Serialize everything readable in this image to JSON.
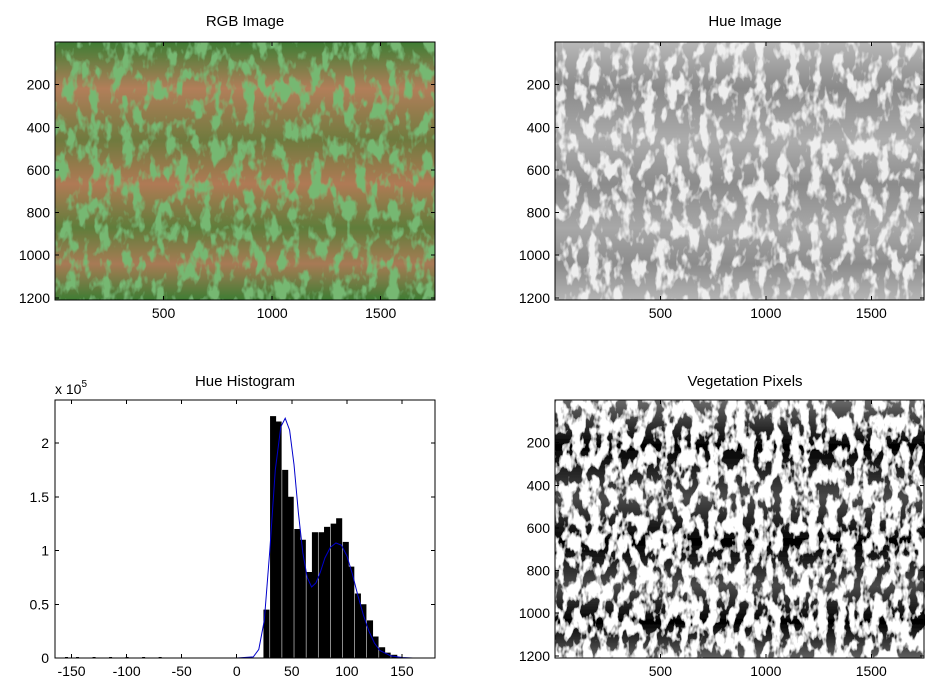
{
  "figure": {
    "panels": [
      {
        "id": "rgb",
        "title": "RGB Image"
      },
      {
        "id": "hue",
        "title": "Hue Image"
      },
      {
        "id": "hist",
        "title": "Hue Histogram"
      },
      {
        "id": "veg",
        "title": "Vegetation Pixels"
      }
    ]
  },
  "colors": {
    "soil": "#b07a55",
    "vegetation": "#2f7a2c",
    "hue_background": "#8c8c8c",
    "hue_plants": "#d8d8d8",
    "histogram_bars": "#000000",
    "fit_curve": "#0000cc"
  },
  "chart_data": [
    {
      "type": "image",
      "title": "RGB Image",
      "xticks": [
        500,
        1000,
        1500
      ],
      "yticks": [
        200,
        400,
        600,
        800,
        1000,
        1200
      ],
      "xlim": [
        0,
        1750
      ],
      "ylim": [
        0,
        1210
      ]
    },
    {
      "type": "image",
      "title": "Hue Image",
      "xticks": [
        500,
        1000,
        1500
      ],
      "yticks": [
        200,
        400,
        600,
        800,
        1000,
        1200
      ],
      "xlim": [
        0,
        1750
      ],
      "ylim": [
        0,
        1210
      ]
    },
    {
      "type": "bar",
      "title": "Hue Histogram",
      "y_multiplier": "x 10",
      "y_exponent": "5",
      "xlim": [
        -165,
        180
      ],
      "ylim": [
        0,
        2.4
      ],
      "xticks": [
        -150,
        -100,
        -50,
        0,
        50,
        100,
        150
      ],
      "yticks": [
        0,
        0.5,
        1,
        1.5,
        2
      ],
      "ytick_labels": [
        "0",
        "0.5",
        "1",
        "1.5",
        "2"
      ],
      "bin_width": 5.5,
      "bins": [
        {
          "x": 27,
          "y": 0.45
        },
        {
          "x": 33,
          "y": 2.25
        },
        {
          "x": 38,
          "y": 2.2
        },
        {
          "x": 44,
          "y": 1.75
        },
        {
          "x": 49,
          "y": 1.5
        },
        {
          "x": 55,
          "y": 1.2
        },
        {
          "x": 60,
          "y": 1.1
        },
        {
          "x": 66,
          "y": 0.8
        },
        {
          "x": 71,
          "y": 1.17
        },
        {
          "x": 77,
          "y": 1.17
        },
        {
          "x": 82,
          "y": 1.22
        },
        {
          "x": 88,
          "y": 1.25
        },
        {
          "x": 93,
          "y": 1.3
        },
        {
          "x": 99,
          "y": 1.08
        },
        {
          "x": 104,
          "y": 0.85
        },
        {
          "x": 110,
          "y": 0.6
        },
        {
          "x": 115,
          "y": 0.5
        },
        {
          "x": 121,
          "y": 0.35
        },
        {
          "x": 126,
          "y": 0.2
        },
        {
          "x": 132,
          "y": 0.1
        },
        {
          "x": 137,
          "y": 0.05
        },
        {
          "x": 143,
          "y": 0.03
        },
        {
          "x": 148,
          "y": 0.01
        }
      ],
      "fit_curve": [
        {
          "x": -165,
          "y": 0
        },
        {
          "x": 0,
          "y": 0
        },
        {
          "x": 15,
          "y": 0.01
        },
        {
          "x": 20,
          "y": 0.08
        },
        {
          "x": 25,
          "y": 0.35
        },
        {
          "x": 30,
          "y": 1.0
        },
        {
          "x": 35,
          "y": 1.75
        },
        {
          "x": 40,
          "y": 2.15
        },
        {
          "x": 44,
          "y": 2.23
        },
        {
          "x": 48,
          "y": 2.12
        },
        {
          "x": 52,
          "y": 1.8
        },
        {
          "x": 56,
          "y": 1.35
        },
        {
          "x": 60,
          "y": 0.98
        },
        {
          "x": 64,
          "y": 0.75
        },
        {
          "x": 68,
          "y": 0.66
        },
        {
          "x": 72,
          "y": 0.7
        },
        {
          "x": 76,
          "y": 0.8
        },
        {
          "x": 80,
          "y": 0.93
        },
        {
          "x": 85,
          "y": 1.03
        },
        {
          "x": 90,
          "y": 1.07
        },
        {
          "x": 95,
          "y": 1.05
        },
        {
          "x": 100,
          "y": 0.95
        },
        {
          "x": 105,
          "y": 0.78
        },
        {
          "x": 110,
          "y": 0.58
        },
        {
          "x": 115,
          "y": 0.4
        },
        {
          "x": 120,
          "y": 0.25
        },
        {
          "x": 125,
          "y": 0.14
        },
        {
          "x": 130,
          "y": 0.07
        },
        {
          "x": 140,
          "y": 0.02
        },
        {
          "x": 150,
          "y": 0.005
        },
        {
          "x": 160,
          "y": 0
        },
        {
          "x": 180,
          "y": 0
        }
      ],
      "tiny_bins_negative": [
        -155,
        -145,
        -130,
        -115,
        -100,
        -85,
        -70
      ]
    },
    {
      "type": "image",
      "title": "Vegetation Pixels",
      "xticks": [
        500,
        1000,
        1500
      ],
      "yticks": [
        200,
        400,
        600,
        800,
        1000,
        1200
      ],
      "xlim": [
        0,
        1750
      ],
      "ylim": [
        0,
        1210
      ]
    }
  ]
}
